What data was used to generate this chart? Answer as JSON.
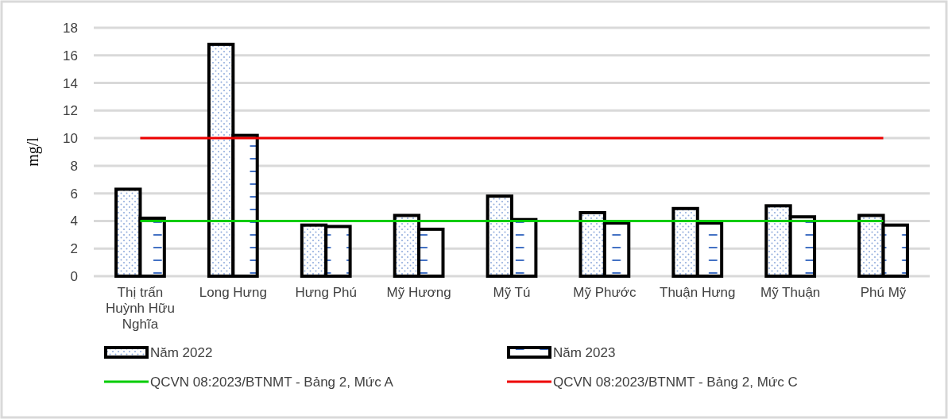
{
  "chart_data": {
    "type": "bar",
    "ylabel": "mg/l",
    "categories": [
      "Thị trấn Huỳnh Hữu Nghĩa",
      "Long Hưng",
      "Hưng Phú",
      "Mỹ Hương",
      "Mỹ Tú",
      "Mỹ Phước",
      "Thuận Hưng",
      "Mỹ Thuận",
      "Phú Mỹ"
    ],
    "series": [
      {
        "name": "Năm 2022",
        "color": "#000000",
        "values": [
          6.3,
          16.8,
          3.7,
          4.4,
          5.8,
          4.6,
          4.9,
          5.1,
          4.4
        ]
      },
      {
        "name": "Năm 2023",
        "color": "#000000",
        "values": [
          4.2,
          10.2,
          3.6,
          3.4,
          4.1,
          3.85,
          3.85,
          4.3,
          3.7
        ]
      },
      {
        "name": "QCVN 08:2023/BTNMT - Bảng 2, Mức A",
        "type": "line",
        "color": "#00cc00",
        "values": [
          4,
          4,
          4,
          4,
          4,
          4,
          4,
          4,
          4
        ]
      },
      {
        "name": "QCVN 08:2023/BTNMT - Bảng 2, Mức C",
        "type": "line",
        "color": "#ee0000",
        "values": [
          10,
          10,
          10,
          10,
          10,
          10,
          10,
          10,
          10
        ]
      }
    ],
    "ylim": [
      0,
      18
    ],
    "yticks": [
      0,
      2,
      4,
      6,
      8,
      10,
      12,
      14,
      16,
      18
    ],
    "grid": "y",
    "legend": "bottom"
  }
}
